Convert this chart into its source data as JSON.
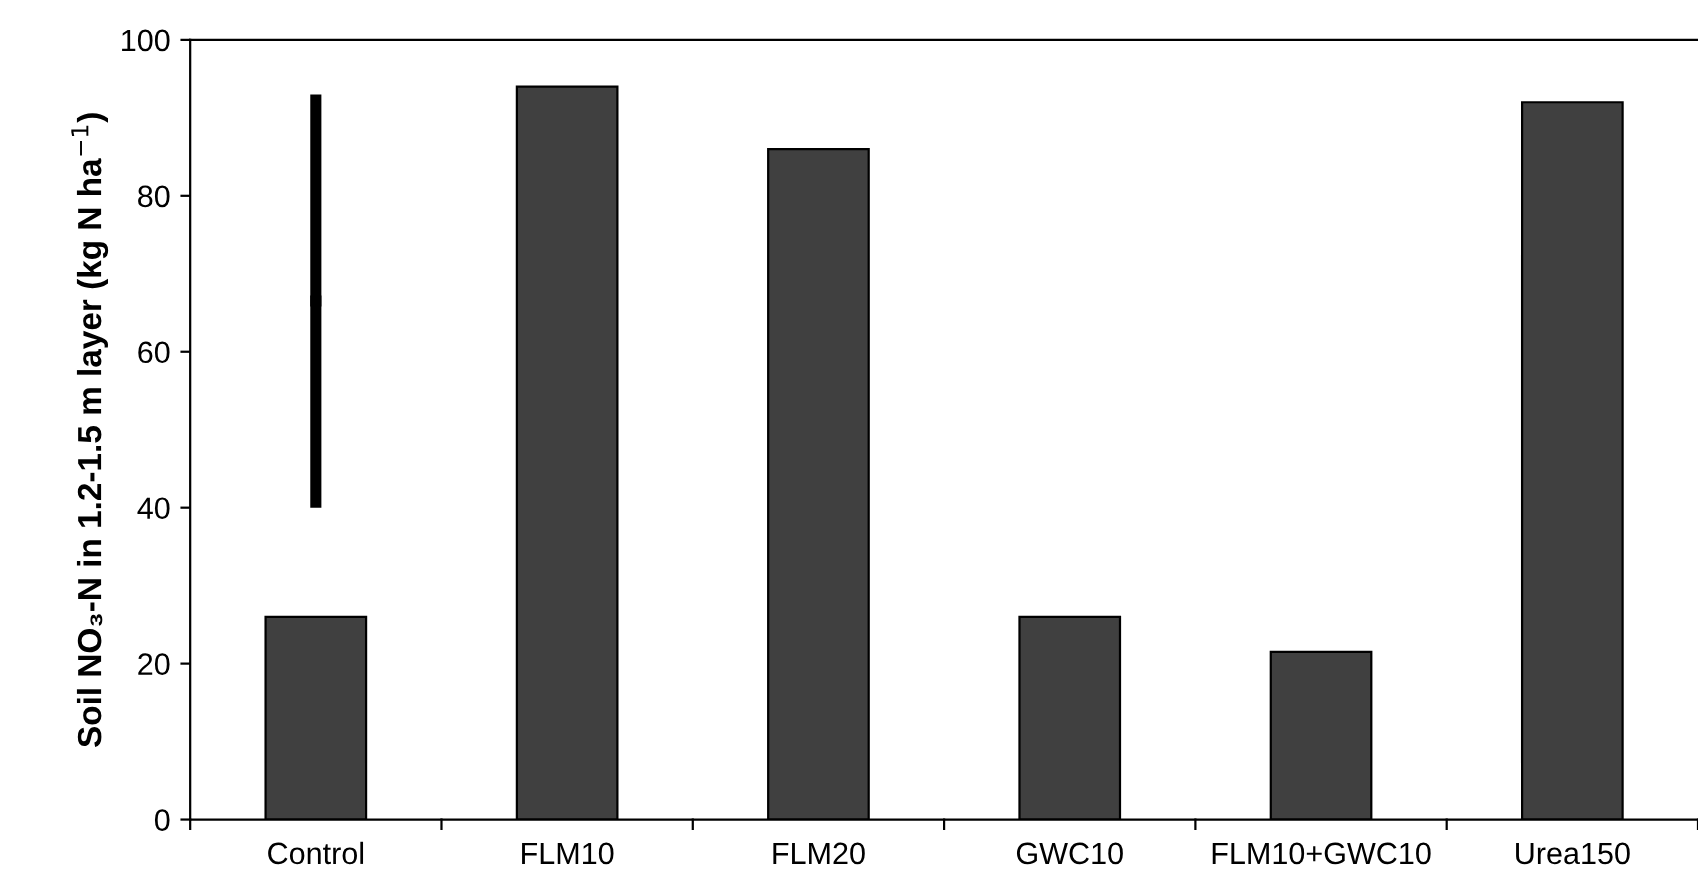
{
  "chart_data": {
    "type": "bar",
    "ylabel": "Soil NO₃-N in 1.2-1.5 m layer (kg N ha$^{−1}$)",
    "categories": [
      "Control",
      "FLM10",
      "FLM20",
      "GWC10",
      "FLM10+GWC10",
      "Urea150"
    ],
    "series": [
      {
        "color": "#404040",
        "values": [
          26,
          94,
          86,
          26,
          21.5,
          92
        ]
      },
      {
        "type": "scatter",
        "marker": "square",
        "color": "#000000",
        "values": [
          66.5,
          null,
          null,
          null,
          null,
          null
        ],
        "errors": [
          26.5,
          null,
          null,
          null,
          null,
          null
        ]
      }
    ],
    "ylim": [
      0,
      100
    ],
    "yticks": [
      0,
      20,
      40,
      60,
      80,
      100
    ],
    "grid": false,
    "legend": false
  }
}
